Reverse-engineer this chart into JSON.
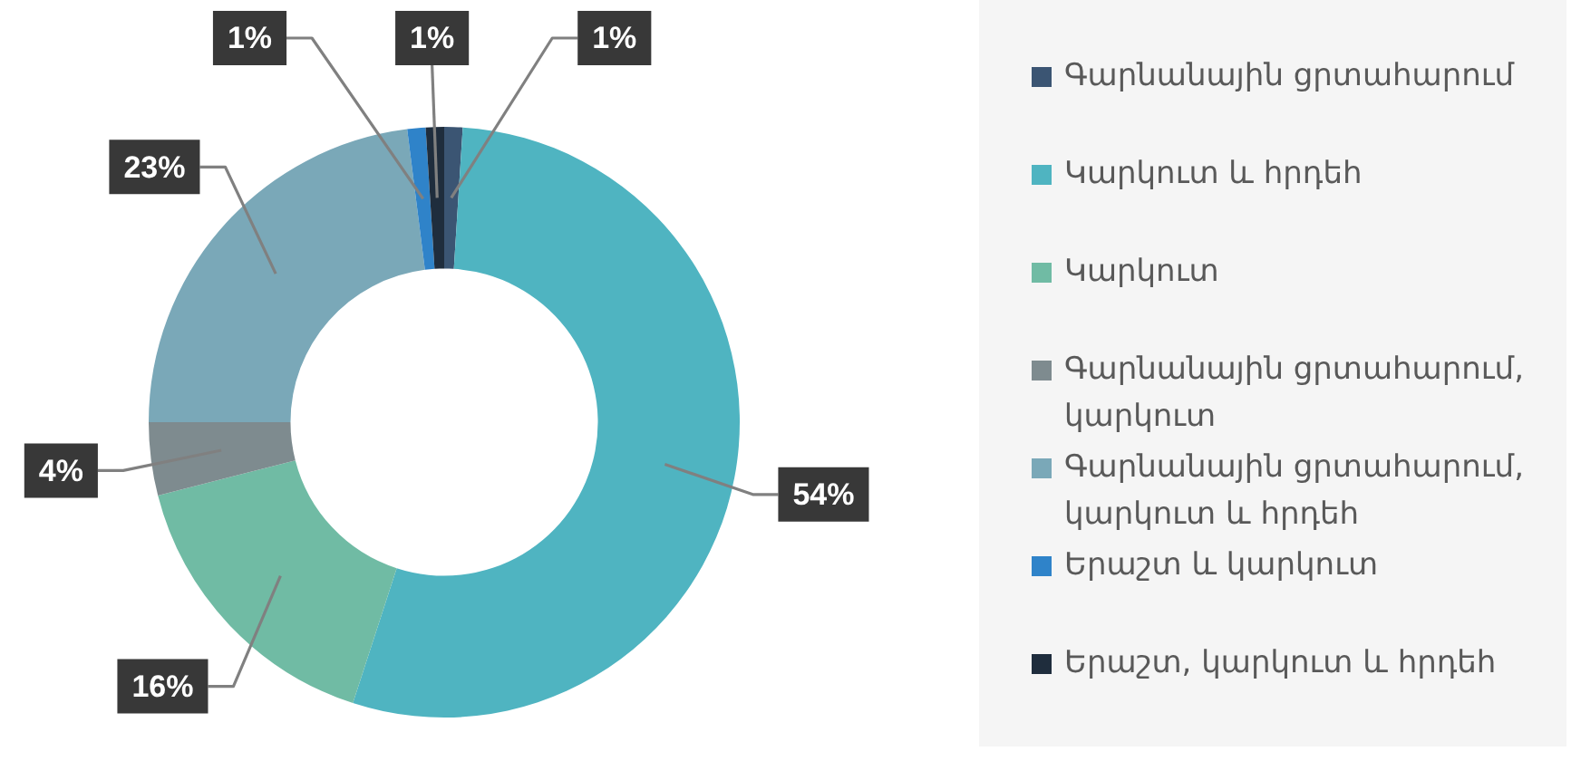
{
  "chart_data": {
    "type": "donut",
    "categories": [
      "Գարնանային ցրտահարում",
      "Կարկուտ և հրդեհ",
      "Կարկուտ",
      "Գարնանային ցրտահարում, կարկուտ",
      "Գարնանային ցրտահարում, կարկուտ և հրդեհ",
      "Երաշտ և կարկուտ",
      "Երաշտ, կարկուտ և հրդեհ"
    ],
    "values": [
      1,
      54,
      16,
      4,
      23,
      1,
      1
    ],
    "colors": [
      "#3b5573",
      "#4fb4c1",
      "#70bba4",
      "#7e8b8f",
      "#7aa8b8",
      "#2f83c9",
      "#1f2d3d"
    ],
    "value_labels": [
      "1%",
      "54%",
      "16%",
      "4%",
      "23%",
      "1%",
      "1%"
    ],
    "legend": "right"
  }
}
